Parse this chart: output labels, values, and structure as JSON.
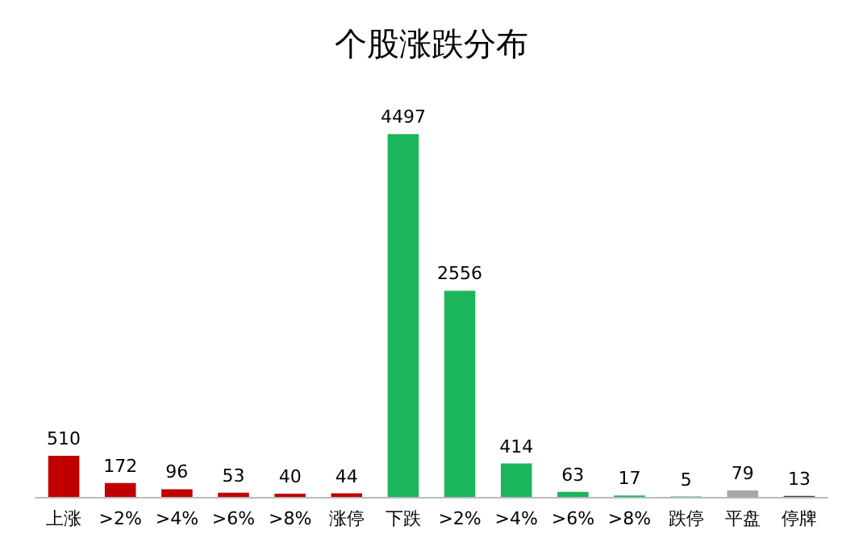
{
  "chart_data": {
    "type": "bar",
    "title": "个股涨跌分布",
    "categories": [
      "上涨",
      ">2%",
      ">4%",
      ">6%",
      ">8%",
      "涨停",
      "下跌",
      ">2%",
      ">4%",
      ">6%",
      ">8%",
      "跌停",
      "平盘",
      "停牌"
    ],
    "values": [
      510,
      172,
      96,
      53,
      40,
      44,
      4497,
      2556,
      414,
      63,
      17,
      5,
      79,
      13
    ],
    "colors": [
      "#c00000",
      "#c00000",
      "#c00000",
      "#c00000",
      "#c00000",
      "#c00000",
      "#1bb55c",
      "#1bb55c",
      "#1bb55c",
      "#1bb55c",
      "#1bb55c",
      "#1bb55c",
      "#a6a6a6",
      "#404040"
    ],
    "data_labels": true
  }
}
